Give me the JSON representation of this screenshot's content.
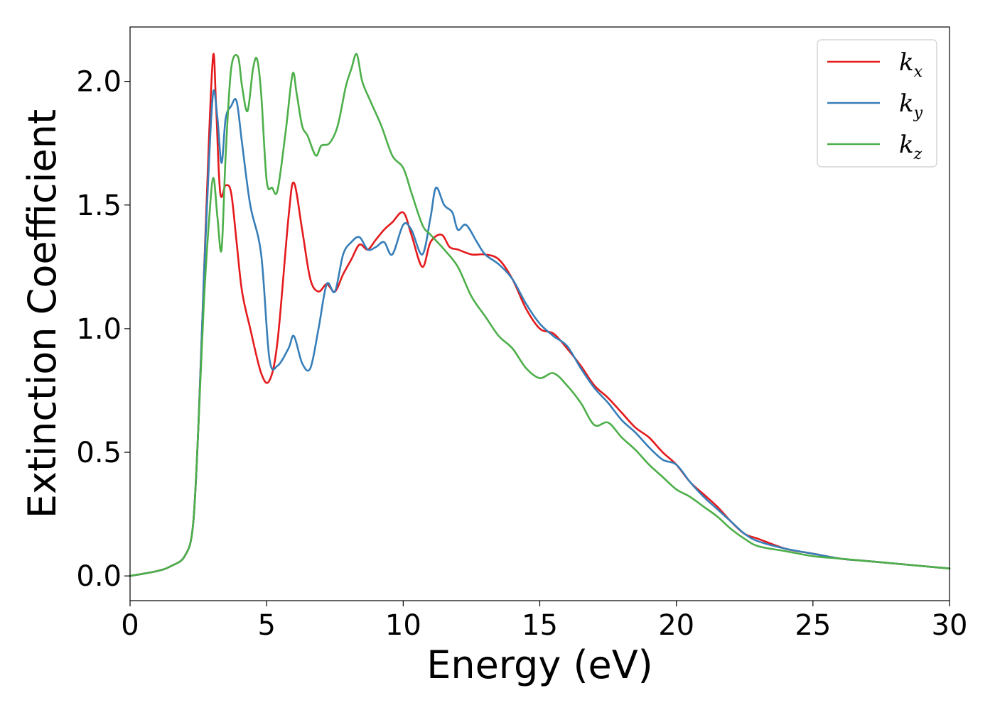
{
  "chart_data": {
    "type": "line",
    "xlabel": "Energy (eV)",
    "ylabel": "Extinction Coefficient",
    "xlim": [
      0,
      30
    ],
    "ylim": [
      -0.1,
      2.22
    ],
    "xticks": [
      "0",
      "5",
      "10",
      "15",
      "20",
      "25",
      "30"
    ],
    "yticks": [
      "0.0",
      "0.5",
      "1.0",
      "1.5",
      "2.0"
    ],
    "grid": false,
    "legend_position": "top-right",
    "series": [
      {
        "name": "k",
        "subscript": "x",
        "color": "#e41a1c",
        "x": [
          0,
          1,
          1.5,
          2.0,
          2.3,
          2.5,
          2.7,
          2.9,
          3.05,
          3.15,
          3.3,
          3.5,
          3.7,
          3.9,
          4.1,
          4.4,
          4.8,
          5.1,
          5.4,
          5.8,
          6.0,
          6.3,
          6.6,
          6.9,
          7.2,
          7.5,
          7.8,
          8.1,
          8.4,
          8.7,
          9.0,
          9.3,
          9.6,
          10.0,
          10.3,
          10.7,
          11.0,
          11.4,
          11.7,
          12.0,
          12.5,
          13.0,
          13.5,
          14.0,
          14.5,
          15.0,
          15.5,
          16.0,
          16.5,
          17.0,
          17.5,
          18.0,
          18.5,
          19.0,
          19.5,
          20.0,
          20.5,
          21.0,
          21.5,
          22.0,
          22.5,
          23.0,
          24.0,
          25.0,
          26.0,
          27.0,
          28.0,
          29.0,
          30.0
        ],
        "values": [
          0.0,
          0.02,
          0.04,
          0.08,
          0.2,
          0.6,
          1.2,
          1.8,
          2.11,
          1.9,
          1.55,
          1.58,
          1.55,
          1.35,
          1.15,
          1.0,
          0.82,
          0.79,
          0.95,
          1.45,
          1.59,
          1.4,
          1.2,
          1.15,
          1.18,
          1.15,
          1.22,
          1.28,
          1.34,
          1.32,
          1.36,
          1.4,
          1.43,
          1.47,
          1.38,
          1.25,
          1.35,
          1.38,
          1.33,
          1.32,
          1.3,
          1.3,
          1.28,
          1.2,
          1.08,
          1.0,
          0.98,
          0.92,
          0.85,
          0.77,
          0.72,
          0.66,
          0.6,
          0.56,
          0.5,
          0.45,
          0.38,
          0.33,
          0.28,
          0.22,
          0.17,
          0.15,
          0.11,
          0.09,
          0.07,
          0.06,
          0.05,
          0.04,
          0.03
        ]
      },
      {
        "name": "k",
        "subscript": "y",
        "color": "#377eb8",
        "x": [
          0,
          1,
          1.5,
          2.0,
          2.3,
          2.5,
          2.7,
          2.9,
          3.05,
          3.2,
          3.35,
          3.5,
          3.7,
          3.9,
          4.1,
          4.4,
          4.8,
          5.1,
          5.4,
          5.8,
          6.0,
          6.3,
          6.6,
          6.9,
          7.2,
          7.5,
          7.8,
          8.1,
          8.4,
          8.7,
          9.0,
          9.3,
          9.6,
          10.0,
          10.3,
          10.7,
          11.0,
          11.2,
          11.5,
          11.8,
          12.0,
          12.3,
          12.7,
          13.0,
          13.5,
          14.0,
          14.5,
          15.0,
          15.5,
          16.0,
          16.5,
          17.0,
          17.5,
          18.0,
          18.5,
          19.0,
          19.5,
          20.0,
          20.5,
          21.0,
          21.5,
          22.0,
          22.5,
          23.0,
          24.0,
          25.0,
          26.0,
          27.0,
          28.0,
          29.0,
          30.0
        ],
        "values": [
          0.0,
          0.02,
          0.04,
          0.08,
          0.2,
          0.6,
          1.2,
          1.7,
          1.96,
          1.85,
          1.67,
          1.85,
          1.9,
          1.92,
          1.75,
          1.5,
          1.3,
          0.88,
          0.85,
          0.92,
          0.97,
          0.86,
          0.84,
          1.0,
          1.18,
          1.15,
          1.3,
          1.35,
          1.37,
          1.32,
          1.33,
          1.35,
          1.3,
          1.42,
          1.4,
          1.3,
          1.45,
          1.57,
          1.5,
          1.47,
          1.4,
          1.42,
          1.35,
          1.3,
          1.26,
          1.2,
          1.1,
          1.02,
          0.97,
          0.93,
          0.84,
          0.76,
          0.7,
          0.63,
          0.58,
          0.52,
          0.47,
          0.45,
          0.38,
          0.32,
          0.27,
          0.22,
          0.17,
          0.14,
          0.11,
          0.09,
          0.07,
          0.06,
          0.05,
          0.04,
          0.03
        ]
      },
      {
        "name": "k",
        "subscript": "z",
        "color": "#4daf4a",
        "x": [
          0,
          1,
          1.5,
          2.0,
          2.3,
          2.5,
          2.7,
          2.9,
          3.05,
          3.2,
          3.35,
          3.5,
          3.7,
          3.95,
          4.1,
          4.3,
          4.5,
          4.65,
          4.8,
          5.0,
          5.2,
          5.4,
          5.7,
          5.95,
          6.1,
          6.3,
          6.5,
          6.8,
          7.0,
          7.3,
          7.6,
          7.9,
          8.1,
          8.3,
          8.5,
          8.8,
          9.2,
          9.6,
          10.0,
          10.3,
          10.7,
          11.0,
          11.5,
          12.0,
          12.5,
          13.0,
          13.5,
          14.0,
          14.5,
          15.0,
          15.5,
          16.0,
          16.5,
          17.0,
          17.5,
          18.0,
          18.5,
          19.0,
          19.5,
          20.0,
          20.5,
          21.0,
          21.5,
          22.0,
          22.5,
          23.0,
          24.0,
          25.0,
          26.0,
          27.0,
          28.0,
          29.0,
          30.0
        ],
        "values": [
          0.0,
          0.02,
          0.04,
          0.08,
          0.2,
          0.6,
          1.1,
          1.45,
          1.61,
          1.45,
          1.32,
          1.7,
          2.05,
          2.1,
          1.98,
          1.88,
          2.05,
          2.09,
          1.95,
          1.6,
          1.57,
          1.56,
          1.8,
          2.03,
          1.95,
          1.82,
          1.78,
          1.7,
          1.74,
          1.75,
          1.82,
          1.98,
          2.05,
          2.11,
          2.0,
          1.92,
          1.82,
          1.7,
          1.65,
          1.55,
          1.42,
          1.38,
          1.32,
          1.25,
          1.13,
          1.05,
          0.97,
          0.92,
          0.84,
          0.8,
          0.82,
          0.77,
          0.7,
          0.61,
          0.62,
          0.56,
          0.51,
          0.45,
          0.4,
          0.35,
          0.32,
          0.28,
          0.24,
          0.19,
          0.15,
          0.12,
          0.1,
          0.08,
          0.07,
          0.06,
          0.05,
          0.04,
          0.03
        ]
      }
    ]
  }
}
